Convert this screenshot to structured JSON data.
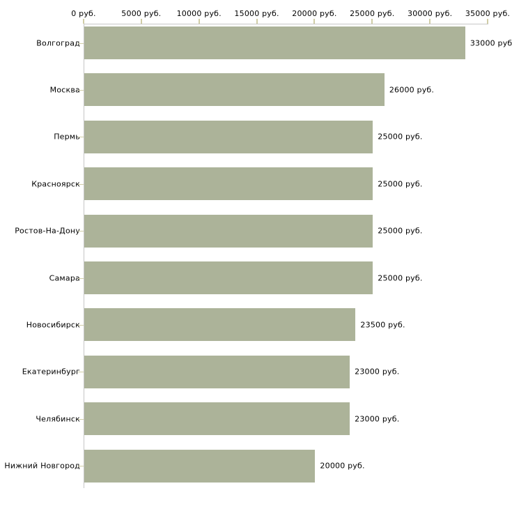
{
  "chart_data": {
    "type": "bar",
    "orientation": "horizontal",
    "title": "",
    "xlabel": "",
    "ylabel": "",
    "unit": "руб.",
    "categories": [
      "Волгоград",
      "Москва",
      "Пермь",
      "Красноярск",
      "Ростов-На-Дону",
      "Самара",
      "Новосибирск",
      "Екатеринбург",
      "Челябинск",
      "Нижний Новгород"
    ],
    "values": [
      33000,
      26000,
      25000,
      25000,
      25000,
      25000,
      23500,
      23000,
      23000,
      20000
    ],
    "value_labels": [
      "33000 руб",
      "26000 руб.",
      "25000 руб.",
      "25000 руб.",
      "25000 руб.",
      "25000 руб.",
      "23500 руб.",
      "23000 руб.",
      "23000 руб.",
      "20000 руб."
    ],
    "x_axis": {
      "position": "top",
      "min": 0,
      "max": 35000,
      "ticks": [
        0,
        5000,
        10000,
        15000,
        20000,
        25000,
        30000,
        35000
      ],
      "tick_labels": [
        "0 руб.",
        "5000 руб.",
        "10000 руб.",
        "15000 руб.",
        "20000 руб.",
        "25000 руб.",
        "30000 руб.",
        "35000 руб."
      ]
    },
    "legend": null,
    "grid": false,
    "colors": {
      "bar": "#acb399",
      "axis_line": "#c6c6c6",
      "tick_mark": "#d0cda6",
      "text": "#000000",
      "background": "#ffffff"
    }
  }
}
